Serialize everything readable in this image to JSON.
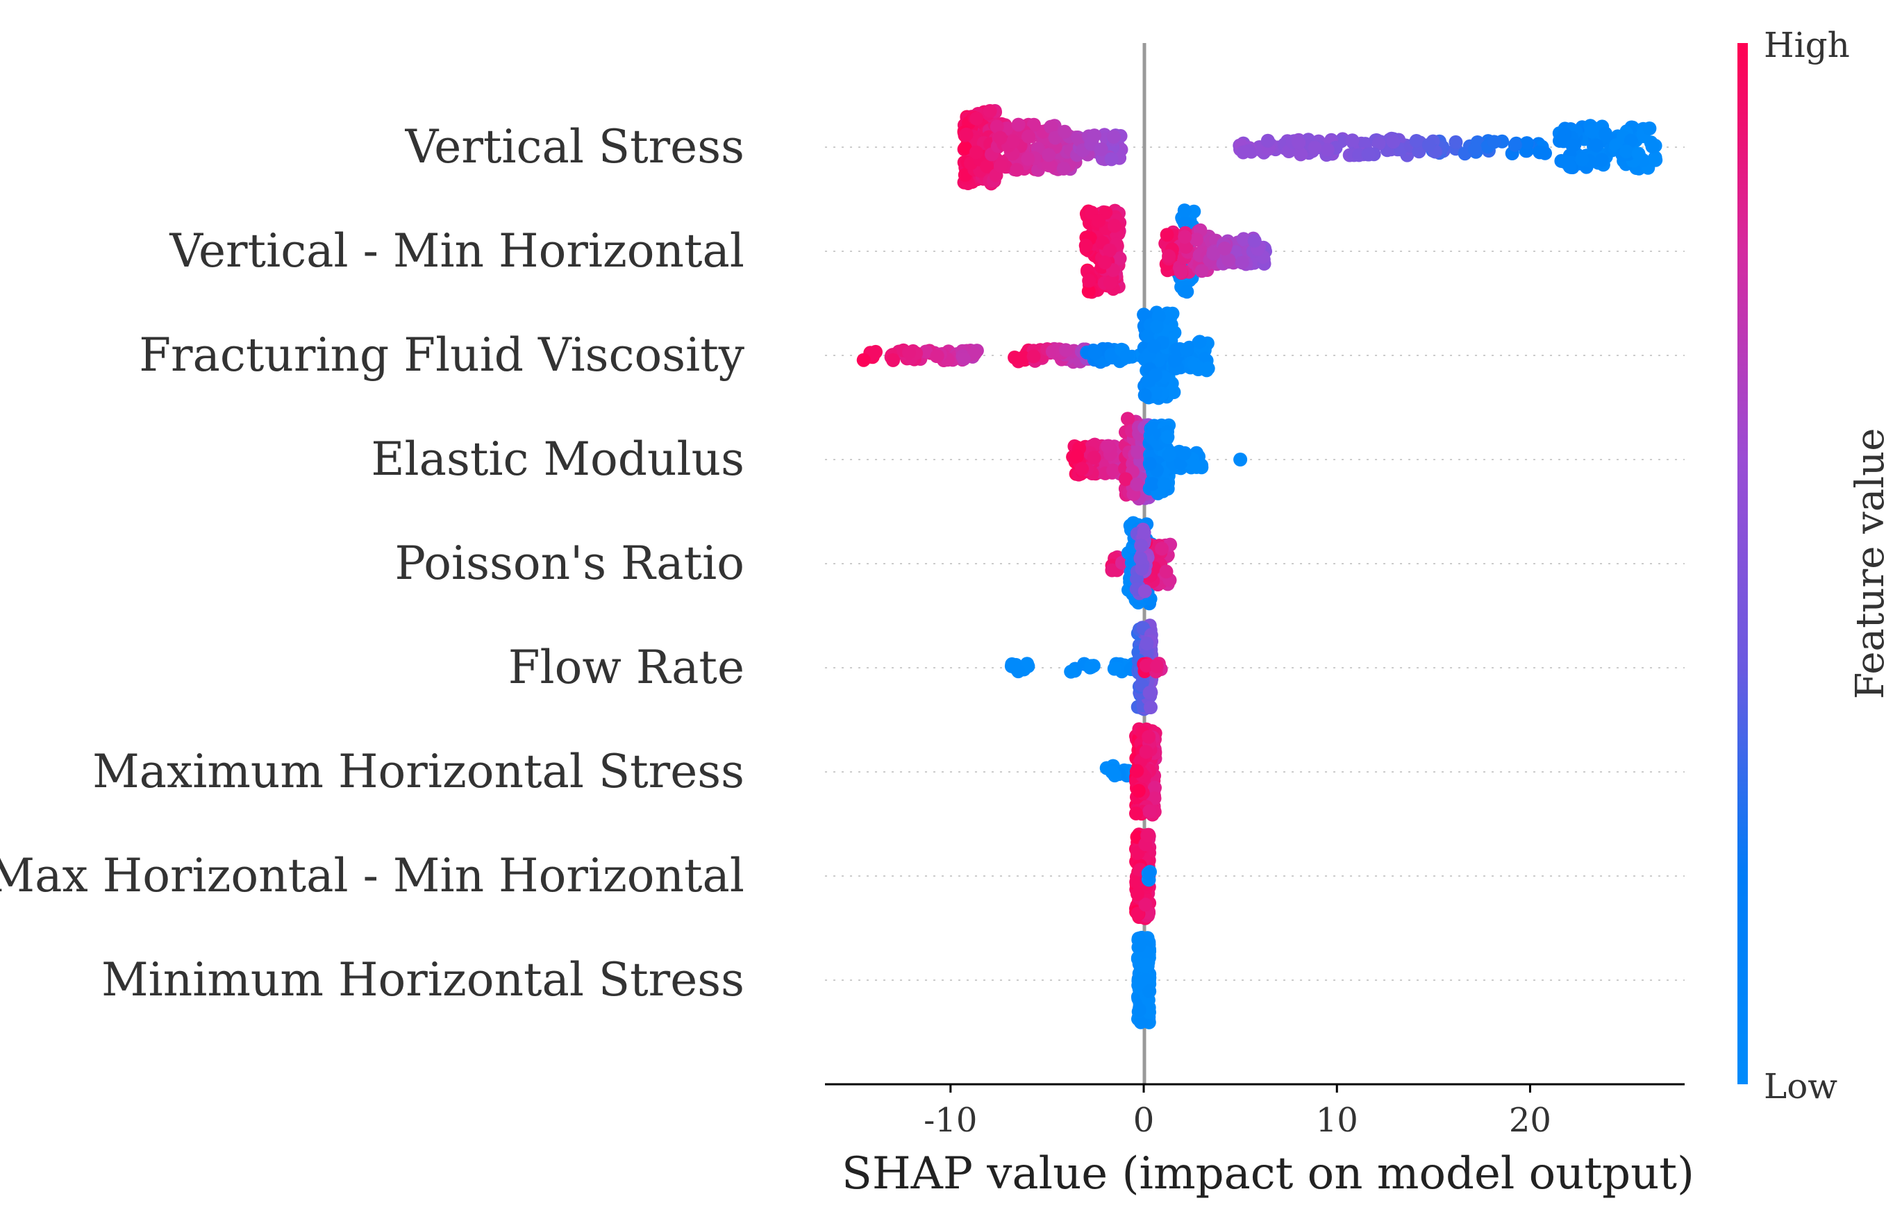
{
  "chart_data": {
    "type": "scatter",
    "subtype": "shap-beeswarm",
    "title": "",
    "xlabel": "SHAP value (impact on model output)",
    "xlim": [
      -16.5,
      28
    ],
    "xticks": [
      -10,
      0,
      10,
      20
    ],
    "xtick_labels": [
      "-10",
      "0",
      "10",
      "20"
    ],
    "colorbar": {
      "title": "Feature value",
      "high_label": "High",
      "low_label": "Low",
      "low_color": "#008bfb",
      "high_color": "#ff0052"
    },
    "colors": {
      "low": "#008bfb",
      "high": "#ff0052",
      "zero_line": "#999999",
      "axis": "#000000"
    },
    "features": [
      {
        "name": "Vertical Stress",
        "clusters": [
          {
            "x": [
              -9.3,
              -7.6
            ],
            "fv": [
              0.97,
              0.88
            ],
            "n": 170,
            "spread": 0.85
          },
          {
            "x": [
              -7.6,
              -3.5
            ],
            "fv": [
              0.88,
              0.72
            ],
            "n": 110,
            "spread": 0.55
          },
          {
            "x": [
              -3.5,
              -1.1
            ],
            "fv": [
              0.68,
              0.58
            ],
            "n": 35,
            "spread": 0.3
          },
          {
            "x": [
              4.8,
              8.0
            ],
            "fv": [
              0.58,
              0.54
            ],
            "n": 28,
            "spread": 0.15
          },
          {
            "x": [
              8.0,
              14.0
            ],
            "fv": [
              0.56,
              0.42
            ],
            "n": 60,
            "spread": 0.2
          },
          {
            "x": [
              14.0,
              21.0
            ],
            "fv": [
              0.38,
              0.18
            ],
            "n": 40,
            "spread": 0.15
          },
          {
            "x": [
              21.5,
              26.5
            ],
            "fv": [
              0.15,
              0.0
            ],
            "n": 110,
            "spread": 0.5
          }
        ]
      },
      {
        "name": "Vertical - Min Horizontal",
        "clusters": [
          {
            "x": [
              -3.0,
              -1.2
            ],
            "fv": [
              0.98,
              0.88
            ],
            "n": 110,
            "spread": 0.95
          },
          {
            "x": [
              1.8,
              2.6
            ],
            "fv": [
              0.05,
              0.0
            ],
            "n": 40,
            "spread": 0.95
          },
          {
            "x": [
              1.1,
              3.4
            ],
            "fv": [
              0.95,
              0.75
            ],
            "n": 60,
            "spread": 0.5
          },
          {
            "x": [
              3.4,
              6.3
            ],
            "fv": [
              0.72,
              0.55
            ],
            "n": 60,
            "spread": 0.3
          }
        ]
      },
      {
        "name": "Fracturing Fluid Viscosity",
        "clusters": [
          {
            "x": [
              -14.7,
              -8.5
            ],
            "fv": [
              0.98,
              0.72
            ],
            "n": 55,
            "spread": 0.12
          },
          {
            "x": [
              -6.7,
              -2.8
            ],
            "fv": [
              0.98,
              0.65
            ],
            "n": 45,
            "spread": 0.15
          },
          {
            "x": [
              -3.0,
              0.0
            ],
            "fv": [
              0.15,
              0.0
            ],
            "n": 30,
            "spread": 0.15
          },
          {
            "x": [
              0.0,
              1.6
            ],
            "fv": [
              0.08,
              0.0
            ],
            "n": 120,
            "spread": 1.0
          },
          {
            "x": [
              1.6,
              3.4
            ],
            "fv": [
              0.05,
              0.0
            ],
            "n": 45,
            "spread": 0.35
          }
        ]
      },
      {
        "name": "Elastic Modulus",
        "clusters": [
          {
            "x": [
              -3.8,
              -1.0
            ],
            "fv": [
              0.98,
              0.78
            ],
            "n": 70,
            "spread": 0.35
          },
          {
            "x": [
              -1.0,
              0.3
            ],
            "fv": [
              0.9,
              0.6
            ],
            "n": 80,
            "spread": 0.95
          },
          {
            "x": [
              0.3,
              1.3
            ],
            "fv": [
              0.1,
              0.0
            ],
            "n": 90,
            "spread": 0.8
          },
          {
            "x": [
              1.3,
              3.0
            ],
            "fv": [
              0.05,
              0.0
            ],
            "n": 30,
            "spread": 0.2
          },
          {
            "x": [
              4.9,
              5.1
            ],
            "fv": [
              0.0,
              0.0
            ],
            "n": 1,
            "spread": 0.0
          }
        ]
      },
      {
        "name": "Poisson's Ratio",
        "clusters": [
          {
            "x": [
              -1.9,
              -0.4
            ],
            "fv": [
              0.95,
              0.75
            ],
            "n": 15,
            "spread": 0.2
          },
          {
            "x": [
              -0.8,
              0.4
            ],
            "fv": [
              0.0,
              0.1
            ],
            "n": 60,
            "spread": 0.95
          },
          {
            "x": [
              -0.1,
              1.4
            ],
            "fv": [
              0.98,
              0.8
            ],
            "n": 50,
            "spread": 0.5
          },
          {
            "x": [
              -0.4,
              0.2
            ],
            "fv": [
              0.4,
              0.6
            ],
            "n": 25,
            "spread": 0.8
          }
        ]
      },
      {
        "name": "Flow Rate",
        "clusters": [
          {
            "x": [
              -6.9,
              -5.9
            ],
            "fv": [
              0.0,
              0.0
            ],
            "n": 8,
            "spread": 0.1
          },
          {
            "x": [
              -3.8,
              -2.4
            ],
            "fv": [
              0.0,
              0.0
            ],
            "n": 8,
            "spread": 0.1
          },
          {
            "x": [
              -1.6,
              -0.3
            ],
            "fv": [
              0.0,
              0.05
            ],
            "n": 12,
            "spread": 0.1
          },
          {
            "x": [
              -0.3,
              0.4
            ],
            "fv": [
              0.3,
              0.5
            ],
            "n": 110,
            "spread": 1.0
          },
          {
            "x": [
              0.0,
              0.9
            ],
            "fv": [
              0.95,
              0.85
            ],
            "n": 10,
            "spread": 0.1
          }
        ]
      },
      {
        "name": "Maximum Horizontal Stress",
        "clusters": [
          {
            "x": [
              -2.0,
              -0.5
            ],
            "fv": [
              0.0,
              0.05
            ],
            "n": 15,
            "spread": 0.15
          },
          {
            "x": [
              -0.4,
              0.6
            ],
            "fv": [
              0.98,
              0.88
            ],
            "n": 150,
            "spread": 1.0
          }
        ]
      },
      {
        "name": "Max Horizontal - Min Horizontal",
        "clusters": [
          {
            "x": [
              -0.4,
              0.3
            ],
            "fv": [
              0.98,
              0.9
            ],
            "n": 150,
            "spread": 1.0
          },
          {
            "x": [
              0.2,
              0.4
            ],
            "fv": [
              0.1,
              0.0
            ],
            "n": 4,
            "spread": 0.1
          }
        ]
      },
      {
        "name": "Minimum Horizontal Stress",
        "clusters": [
          {
            "x": [
              -0.3,
              0.3
            ],
            "fv": [
              0.02,
              0.0
            ],
            "n": 160,
            "spread": 1.0
          }
        ]
      }
    ]
  }
}
